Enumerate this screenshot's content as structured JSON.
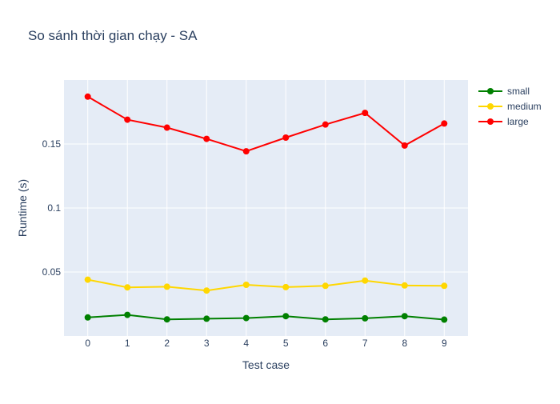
{
  "chart_data": {
    "type": "line",
    "title": "So sánh thời gian chạy - SA",
    "xlabel": "Test case",
    "ylabel": "Runtime (s)",
    "x": [
      0,
      1,
      2,
      3,
      4,
      5,
      6,
      7,
      8,
      9
    ],
    "x_ticks": [
      "0",
      "1",
      "2",
      "3",
      "4",
      "5",
      "6",
      "7",
      "8",
      "9"
    ],
    "y_ticks": [
      {
        "value": 0.05,
        "label": "0.05"
      },
      {
        "value": 0.1,
        "label": "0.1"
      },
      {
        "value": 0.15,
        "label": "0.15"
      }
    ],
    "xlim": [
      -0.6,
      9.6
    ],
    "ylim": [
      0.0,
      0.2
    ],
    "grid": true,
    "legend_position": "top-right",
    "background_color": "#e5ecf6",
    "series": [
      {
        "name": "small",
        "color": "#008000",
        "values": [
          0.0145,
          0.0165,
          0.013,
          0.0135,
          0.014,
          0.0155,
          0.013,
          0.0138,
          0.0155,
          0.0128
        ]
      },
      {
        "name": "medium",
        "color": "#ffd700",
        "values": [
          0.044,
          0.038,
          0.0385,
          0.0355,
          0.04,
          0.0382,
          0.0392,
          0.0433,
          0.0395,
          0.0392
        ]
      },
      {
        "name": "large",
        "color": "#ff0000",
        "values": [
          0.187,
          0.169,
          0.1628,
          0.154,
          0.1443,
          0.155,
          0.1652,
          0.1743,
          0.1488,
          0.166
        ]
      }
    ]
  }
}
